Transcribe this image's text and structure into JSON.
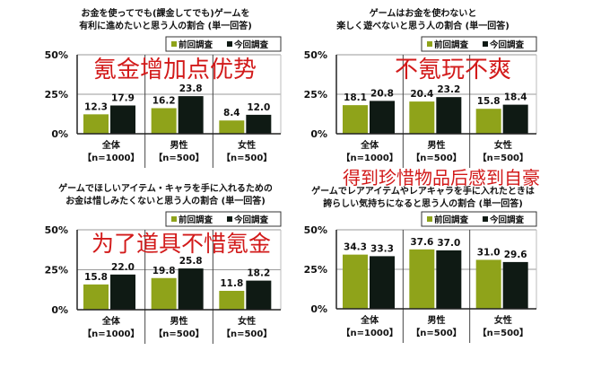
{
  "colors": {
    "previous": "#8fa31a",
    "current": "#0f1a14",
    "overlay": "#d21a1a",
    "grid": "#9a9a9a"
  },
  "chart_data": [
    {
      "type": "bar",
      "title": [
        "お金を使ってでも(課金してでも)ゲームを",
        "有利に進めたいと思う人の割合 (単一回答)"
      ],
      "overlay": "氪金增加点优势",
      "categories": [
        [
          "全体",
          "【n=1000】"
        ],
        [
          "男性",
          "【n=500】"
        ],
        [
          "女性",
          "【n=500】"
        ]
      ],
      "series": [
        {
          "name": "前回調査",
          "values": [
            12.3,
            16.2,
            8.4
          ]
        },
        {
          "name": "今回調査",
          "values": [
            17.9,
            23.8,
            12.0
          ]
        }
      ],
      "yticks": [
        "0%",
        "25%",
        "50%"
      ],
      "ylim": [
        0,
        50
      ],
      "grid": true,
      "legend": "top-right"
    },
    {
      "type": "bar",
      "title": [
        "ゲームはお金を使わないと",
        "楽しく遊べないと思う人の割合 (単一回答)"
      ],
      "overlay": "不氪玩不爽",
      "categories": [
        [
          "全体",
          "【n=1000】"
        ],
        [
          "男性",
          "【n=500】"
        ],
        [
          "女性",
          "【n=500】"
        ]
      ],
      "series": [
        {
          "name": "前回調査",
          "values": [
            18.1,
            20.4,
            15.8
          ]
        },
        {
          "name": "今回調査",
          "values": [
            20.8,
            23.2,
            18.4
          ]
        }
      ],
      "yticks": [
        "0%",
        "25%",
        "50%"
      ],
      "ylim": [
        0,
        50
      ],
      "grid": true,
      "legend": "top-right"
    },
    {
      "type": "bar",
      "title": [
        "ゲームでほしいアイテム・キャラを手に入れるための",
        "お金は惜しみたくないと思う人の割合 (単一回答)"
      ],
      "overlay": "为了道具不惜氪金",
      "categories": [
        [
          "全体",
          "【n=1000】"
        ],
        [
          "男性",
          "【n=500】"
        ],
        [
          "女性",
          "【n=500】"
        ]
      ],
      "series": [
        {
          "name": "前回調査",
          "values": [
            15.8,
            19.8,
            11.8
          ]
        },
        {
          "name": "今回調査",
          "values": [
            22.0,
            25.8,
            18.2
          ]
        }
      ],
      "yticks": [
        "0%",
        "25%",
        "50%"
      ],
      "ylim": [
        0,
        50
      ],
      "grid": true,
      "legend": "top-right"
    },
    {
      "type": "bar",
      "title": [
        "ゲームでレアアイテムやレアキャラを手に入れたときは",
        "誇らしい気持ちになると思う人の割合 (単一回答)"
      ],
      "overlay": "得到珍惜物品后感到自豪",
      "categories": [
        [
          "全体",
          "【n=1000】"
        ],
        [
          "男性",
          "【n=500】"
        ],
        [
          "女性",
          "【n=500】"
        ]
      ],
      "series": [
        {
          "name": "前回調査",
          "values": [
            34.3,
            37.6,
            31.0
          ]
        },
        {
          "name": "今回調査",
          "values": [
            33.3,
            37.0,
            29.6
          ]
        }
      ],
      "yticks": [
        "0%",
        "25%",
        "50%"
      ],
      "ylim": [
        0,
        50
      ],
      "grid": true,
      "legend": "top-right"
    }
  ]
}
